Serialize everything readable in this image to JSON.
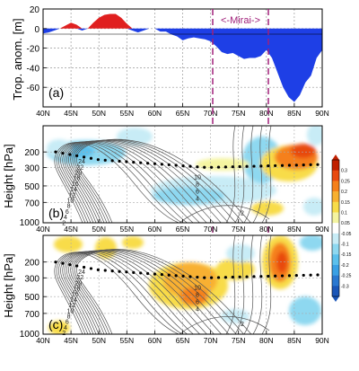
{
  "chart_data": [
    {
      "type": "area",
      "panel_label": "(a)",
      "ylabel": "Trop. anom. [m]",
      "ylim": [
        -80,
        20
      ],
      "yticks": [
        20,
        0,
        -20,
        -40,
        -60
      ],
      "x_ticklabels": [
        "40N",
        "45N",
        "50N",
        "55N",
        "60N",
        "65N",
        "70N",
        "75N",
        "80N",
        "85N",
        "90N"
      ],
      "xlim": [
        40,
        90
      ],
      "grid": true,
      "region_label": "<-Mirai->",
      "region": [
        70,
        80
      ],
      "positive_color": "#e02020",
      "negative_color": "#1e3fe6",
      "x": [
        40,
        41,
        42,
        43,
        44,
        45,
        46,
        47,
        48,
        49,
        50,
        51,
        52,
        53,
        54,
        55,
        56,
        57,
        58,
        59,
        60,
        61,
        62,
        63,
        64,
        65,
        66,
        67,
        68,
        69,
        70,
        71,
        72,
        73,
        74,
        75,
        76,
        77,
        78,
        79,
        80,
        81,
        82,
        83,
        84,
        85,
        86,
        87,
        88,
        89,
        90
      ],
      "values": [
        -5,
        -4,
        -2,
        0,
        3,
        6,
        4,
        -2,
        0,
        6,
        11,
        14,
        15,
        15,
        11,
        5,
        -2,
        -4,
        -2,
        0,
        0,
        -3,
        -3,
        -6,
        -8,
        -12,
        -10,
        -9,
        -10,
        -11,
        -13,
        -18,
        -24,
        -26,
        -25,
        -28,
        -31,
        -30,
        -30,
        -28,
        -22,
        -30,
        -45,
        -60,
        -70,
        -75,
        -68,
        -55,
        -48,
        -30,
        -22
      ]
    },
    {
      "type": "heatmap",
      "panel_label": "(b)",
      "ylabel": "Height [hPa]",
      "y_ticklabels": [
        "200",
        "300",
        "500",
        "700",
        "1000"
      ],
      "x_ticklabels": [
        "40N",
        "45N",
        "50N",
        "55N",
        "60N",
        "65N",
        "70N",
        "75N",
        "80N",
        "85N",
        "90N"
      ],
      "contour_labels_left": [
        "24",
        "22",
        "20",
        "18",
        "16",
        "14",
        "12",
        "10",
        "8",
        "6",
        "4",
        "2"
      ],
      "contour_labels_right": [
        "10",
        "8",
        "6",
        "4",
        "2"
      ],
      "tropopause_line": "dotted"
    },
    {
      "type": "heatmap",
      "panel_label": "(c)",
      "ylabel": "Height [hPa]",
      "y_ticklabels": [
        "200",
        "300",
        "500",
        "700",
        "1000"
      ],
      "x_ticklabels": [
        "40N",
        "45N",
        "50N",
        "55N",
        "60N",
        "65N",
        "70N",
        "75N",
        "80N",
        "85N",
        "90N"
      ],
      "contour_labels_left": [
        "24",
        "22",
        "20",
        "18",
        "16",
        "14",
        "12",
        "10",
        "8",
        "6",
        "4",
        "2"
      ],
      "contour_labels_right": [
        "10",
        "8",
        "6",
        "4",
        "2"
      ],
      "tropopause_line": "dotted"
    }
  ],
  "colorbar": {
    "ticklabels": [
      "0.3",
      "0.25",
      "0.2",
      "0.15",
      "0.1",
      "0.05",
      "-0.05",
      "-0.1",
      "-0.15",
      "-0.2",
      "-0.25",
      "-0.3"
    ],
    "colors": [
      "#c02000",
      "#e84a10",
      "#f5801a",
      "#f8b030",
      "#f8dc48",
      "#f4f4a0",
      "#ffffff",
      "#c8ecf6",
      "#8ed8f0",
      "#5cc0ec",
      "#3aa0e4",
      "#2a78d0",
      "#1a56b8"
    ]
  }
}
